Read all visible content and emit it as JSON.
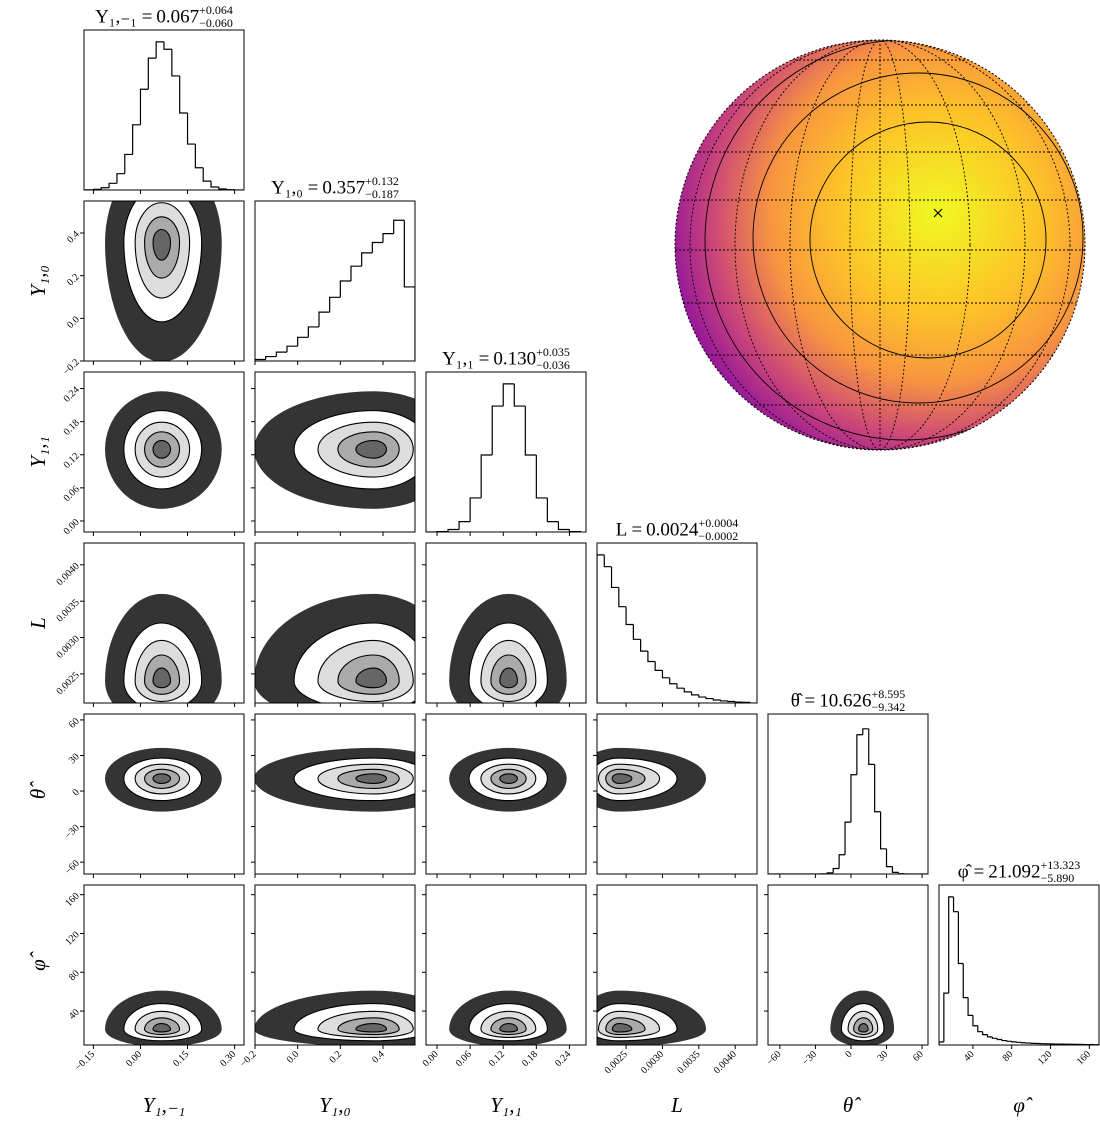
{
  "chart_data": {
    "type": "corner",
    "color": "#000000",
    "hist_ylim": [
      0,
      1.08
    ],
    "parameters": [
      {
        "label": "Y₁,₋₁",
        "title": "Y₁,₋₁ =",
        "median": 0.067,
        "plus": {
          "value": 0.064,
          "label": "+0.064"
        },
        "minus": {
          "value": -0.06,
          "label": "−0.060"
        },
        "lim": [
          -0.18,
          0.33
        ],
        "ticks": [
          {
            "value": -0.15,
            "label": "−0.15"
          },
          {
            "value": 0,
            "label": "0.00"
          },
          {
            "value": 0.15,
            "label": "0.15"
          },
          {
            "value": 0.3,
            "label": "0.30"
          }
        ],
        "bins": [
          -0.175,
          -0.15,
          -0.125,
          -0.1,
          -0.075,
          -0.05,
          -0.025,
          0,
          0.025,
          0.05,
          0.075,
          0.1,
          0.125,
          0.15,
          0.175,
          0.2,
          0.225,
          0.25,
          0.275,
          0.3,
          0.325
        ],
        "counts": [
          0.001,
          0.004,
          0.015,
          0.045,
          0.11,
          0.24,
          0.44,
          0.68,
          0.89,
          1.0,
          0.95,
          0.77,
          0.52,
          0.31,
          0.15,
          0.06,
          0.02,
          0.007,
          0.002,
          0
        ]
      },
      {
        "label": "Y₁,₀",
        "title": "Y₁,₀ =",
        "median": 0.357,
        "plus": {
          "value": 0.132,
          "label": "+0.132"
        },
        "minus": {
          "value": -0.187,
          "label": "−0.187"
        },
        "lim": [
          -0.2,
          0.55
        ],
        "ticks": [
          {
            "value": -0.2,
            "label": "−0.2"
          },
          {
            "value": 0,
            "label": "0.0"
          },
          {
            "value": 0.2,
            "label": "0.2"
          },
          {
            "value": 0.4,
            "label": "0.4"
          }
        ],
        "bins": [
          -0.2,
          -0.15,
          -0.1,
          -0.05,
          0,
          0.05,
          0.1,
          0.15,
          0.2,
          0.25,
          0.3,
          0.35,
          0.4,
          0.45,
          0.5,
          0.55
        ],
        "counts": [
          0.01,
          0.03,
          0.06,
          0.1,
          0.16,
          0.23,
          0.33,
          0.43,
          0.54,
          0.64,
          0.73,
          0.8,
          0.86,
          0.95,
          0.5
        ]
      },
      {
        "label": "Y₁,₁",
        "title": "Y₁,₁ =",
        "median": {
          "value": 0.13,
          "label": "0.130"
        },
        "plus": {
          "value": 0.035,
          "label": "+0.035"
        },
        "minus": {
          "value": -0.036,
          "label": "−0.036"
        },
        "lim": [
          -0.02,
          0.27
        ],
        "ticks": [
          {
            "value": 0,
            "label": "0.00"
          },
          {
            "value": 0.06,
            "label": "0.06"
          },
          {
            "value": 0.12,
            "label": "0.12"
          },
          {
            "value": 0.18,
            "label": "0.18"
          },
          {
            "value": 0.24,
            "label": "0.24"
          }
        ],
        "bins": [
          -0.02,
          0,
          0.02,
          0.04,
          0.06,
          0.08,
          0.1,
          0.12,
          0.14,
          0.16,
          0.18,
          0.2,
          0.22,
          0.24,
          0.26
        ],
        "counts": [
          0,
          0.003,
          0.017,
          0.07,
          0.23,
          0.52,
          0.85,
          1.0,
          0.85,
          0.52,
          0.23,
          0.07,
          0.017,
          0.003
        ]
      },
      {
        "label": "L",
        "title": "L =",
        "median": 0.0024,
        "plus": {
          "value": 0.0004,
          "label": "+0.0004"
        },
        "minus": {
          "value": -0.0002,
          "label": "−0.0002"
        },
        "lim": [
          0.0021,
          0.0043
        ],
        "ticks": [
          0.0025,
          {
            "value": 0.003,
            "label": "0.0030"
          },
          0.0035,
          {
            "value": 0.004,
            "label": "0.0040"
          }
        ],
        "bins": [
          0.0021,
          0.0022,
          0.0023,
          0.0024,
          0.0025,
          0.0026,
          0.0027,
          0.0028,
          0.0029,
          0.003,
          0.0031,
          0.0032,
          0.0033,
          0.0034,
          0.0035,
          0.0036,
          0.0037,
          0.0038,
          0.0039,
          0.004,
          0.0041,
          0.0042
        ],
        "counts": [
          1.0,
          0.92,
          0.78,
          0.65,
          0.53,
          0.43,
          0.35,
          0.28,
          0.22,
          0.17,
          0.13,
          0.1,
          0.075,
          0.055,
          0.04,
          0.03,
          0.02,
          0.014,
          0.01,
          0.006,
          0.004
        ]
      },
      {
        "label": "θ̂",
        "title": "θ̂ =",
        "median": 10.626,
        "plus": {
          "value": 8.595,
          "label": "+8.595"
        },
        "minus": {
          "value": -9.342,
          "label": "−9.342"
        },
        "lim": [
          -70,
          65
        ],
        "ticks": [
          {
            "value": -60,
            "label": "−60"
          },
          {
            "value": -30,
            "label": "−30"
          },
          0,
          30,
          60
        ],
        "bins": [
          -70,
          -65,
          -60,
          -55,
          -50,
          -45,
          -40,
          -35,
          -30,
          -25,
          -20,
          -15,
          -10,
          -5,
          0,
          5,
          10,
          15,
          20,
          25,
          30,
          35,
          40,
          45,
          50,
          55,
          60,
          65
        ],
        "counts": [
          0,
          0,
          0,
          0,
          0,
          0,
          0,
          0,
          0,
          0.001,
          0.008,
          0.037,
          0.13,
          0.35,
          0.67,
          0.94,
          0.98,
          0.74,
          0.42,
          0.17,
          0.05,
          0.011,
          0.002,
          0,
          0,
          0,
          0
        ]
      },
      {
        "label": "φ̂",
        "title": "φ̂ =",
        "median": 21.092,
        "plus": {
          "value": 13.323,
          "label": "+13.323"
        },
        "minus": {
          "value": -5.89,
          "label": "−5.890"
        },
        "lim": [
          5,
          170
        ],
        "ticks": [
          40,
          80,
          120,
          160
        ],
        "bins": [
          5,
          10,
          15,
          20,
          25,
          30,
          35,
          40,
          45,
          50,
          55,
          60,
          65,
          70,
          75,
          80,
          85,
          90,
          95,
          100,
          105,
          110,
          115,
          120,
          125,
          130,
          135,
          140,
          145,
          150,
          155,
          160,
          165,
          170
        ],
        "counts": [
          0.02,
          0.35,
          1.0,
          0.9,
          0.55,
          0.32,
          0.2,
          0.13,
          0.09,
          0.07,
          0.055,
          0.045,
          0.037,
          0.03,
          0.025,
          0.021,
          0.018,
          0.015,
          0.013,
          0.011,
          0.01,
          0.009,
          0.008,
          0.007,
          0.006,
          0.006,
          0.005,
          0.005,
          0.004,
          0.004,
          0.003,
          0.003,
          0.002
        ]
      }
    ]
  }
}
